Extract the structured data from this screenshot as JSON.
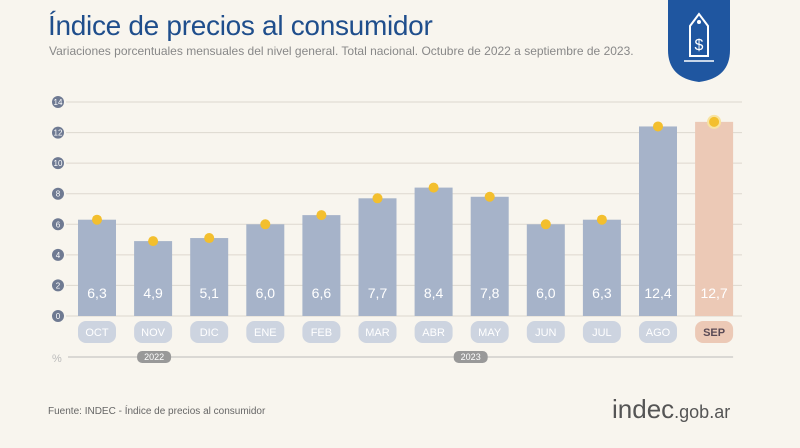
{
  "title": "Índice de precios al consumidor",
  "subtitle": "Variaciones porcentuales mensuales del nivel general. Total nacional. Octubre de 2022 a septiembre de 2023.",
  "source": "Fuente: INDEC - Índice de precios al consumidor",
  "brand": {
    "main": "indec",
    "suffix": ".gob.ar"
  },
  "logo_icon": "price-tag-dollar-icon",
  "colors": {
    "bar": "#a6b3c9",
    "highlight": "#ecc9b6",
    "marker": "#f3bf2e",
    "title": "#1f4e8c"
  },
  "chart_data": {
    "type": "bar",
    "categories": [
      "OCT",
      "NOV",
      "DIC",
      "ENE",
      "FEB",
      "MAR",
      "ABR",
      "MAY",
      "JUN",
      "JUL",
      "AGO",
      "SEP"
    ],
    "values": [
      6.3,
      4.9,
      5.1,
      6.0,
      6.6,
      7.7,
      8.4,
      7.8,
      6.0,
      6.3,
      12.4,
      12.7
    ],
    "value_labels": [
      "6,3",
      "4,9",
      "5,1",
      "6,0",
      "6,6",
      "7,7",
      "8,4",
      "7,8",
      "6,0",
      "6,3",
      "12,4",
      "12,7"
    ],
    "ylabel": "%",
    "ylim": [
      0,
      14
    ],
    "yticks": [
      0,
      2,
      4,
      6,
      8,
      10,
      12,
      14
    ],
    "grid": true,
    "highlight": "SEP",
    "year_groups": [
      {
        "label": "2022",
        "months": [
          "OCT",
          "NOV",
          "DIC"
        ]
      },
      {
        "label": "2023",
        "months": [
          "ENE",
          "FEB",
          "MAR",
          "ABR",
          "MAY",
          "JUN",
          "JUL",
          "AGO",
          "SEP"
        ]
      }
    ]
  }
}
